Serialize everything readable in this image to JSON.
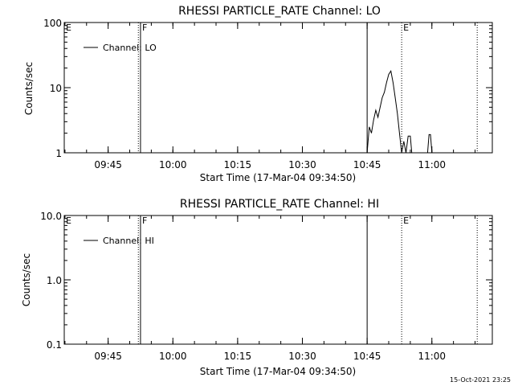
{
  "chart_data": [
    {
      "type": "line",
      "title": "RHESSI PARTICLE_RATE Channel: LO",
      "xlabel": "Start Time (17-Mar-04 09:34:50)",
      "ylabel": "Counts/sec",
      "y_scale": "log",
      "ylim": [
        1,
        100
      ],
      "xlim": [
        "09:34:50",
        "11:14:00"
      ],
      "x_tick_labels": [
        "09:45",
        "10:00",
        "10:15",
        "10:30",
        "10:45",
        "11:00"
      ],
      "y_tick_labels": [
        "1",
        "10",
        "100"
      ],
      "legend": {
        "placement": "top-left",
        "entries": [
          "Channel: LO"
        ]
      },
      "markers": [
        {
          "label": "E",
          "time": "09:34:50",
          "style": "dotted"
        },
        {
          "label": "F",
          "time": "09:52:30",
          "style": "solid"
        },
        {
          "label": "",
          "time": "09:52:00",
          "style": "dotted"
        },
        {
          "label": "",
          "time": "10:45:00",
          "style": "solid"
        },
        {
          "label": "E",
          "time": "10:53:00",
          "style": "dotted"
        },
        {
          "label": "",
          "time": "11:10:30",
          "style": "dotted"
        }
      ],
      "series": [
        {
          "name": "Channel: LO",
          "points": [
            [
              "10:45:00",
              1.0
            ],
            [
              "10:45:30",
              2.5
            ],
            [
              "10:46:00",
              2.0
            ],
            [
              "10:46:30",
              3.2
            ],
            [
              "10:47:00",
              4.5
            ],
            [
              "10:47:30",
              3.5
            ],
            [
              "10:48:00",
              5.0
            ],
            [
              "10:48:30",
              7.0
            ],
            [
              "10:49:00",
              8.5
            ],
            [
              "10:49:30",
              12.0
            ],
            [
              "10:50:00",
              16.0
            ],
            [
              "10:50:30",
              18.0
            ],
            [
              "10:51:00",
              12.0
            ],
            [
              "10:51:30",
              7.0
            ],
            [
              "10:52:00",
              4.0
            ],
            [
              "10:52:30",
              2.0
            ],
            [
              "10:53:00",
              1.0
            ],
            [
              "10:53:30",
              1.5
            ],
            [
              "10:54:00",
              1.0
            ],
            [
              "10:54:30",
              1.8
            ],
            [
              "10:55:00",
              1.8
            ],
            [
              "10:55:20",
              1.0
            ],
            [
              "10:59:00",
              1.0
            ],
            [
              "10:59:20",
              1.9
            ],
            [
              "10:59:40",
              1.9
            ],
            [
              "11:00:00",
              1.0
            ]
          ]
        }
      ]
    },
    {
      "type": "line",
      "title": "RHESSI PARTICLE_RATE Channel: HI",
      "xlabel": "Start Time (17-Mar-04 09:34:50)",
      "ylabel": "Counts/sec",
      "y_scale": "log",
      "ylim": [
        0.1,
        10.0
      ],
      "xlim": [
        "09:34:50",
        "11:14:00"
      ],
      "x_tick_labels": [
        "09:45",
        "10:00",
        "10:15",
        "10:30",
        "10:45",
        "11:00"
      ],
      "y_tick_labels": [
        "0.1",
        "1.0",
        "10.0"
      ],
      "legend": {
        "placement": "top-left",
        "entries": [
          "Channel: HI"
        ]
      },
      "markers": [
        {
          "label": "E",
          "time": "09:34:50",
          "style": "dotted"
        },
        {
          "label": "F",
          "time": "09:52:30",
          "style": "solid"
        },
        {
          "label": "",
          "time": "09:52:00",
          "style": "dotted"
        },
        {
          "label": "",
          "time": "10:45:00",
          "style": "solid"
        },
        {
          "label": "E",
          "time": "10:53:00",
          "style": "dotted"
        },
        {
          "label": "",
          "time": "11:10:30",
          "style": "dotted"
        }
      ],
      "series": [
        {
          "name": "Channel: HI",
          "points": []
        }
      ]
    }
  ],
  "footer": {
    "timestamp": "15-Oct-2021 23:25"
  }
}
